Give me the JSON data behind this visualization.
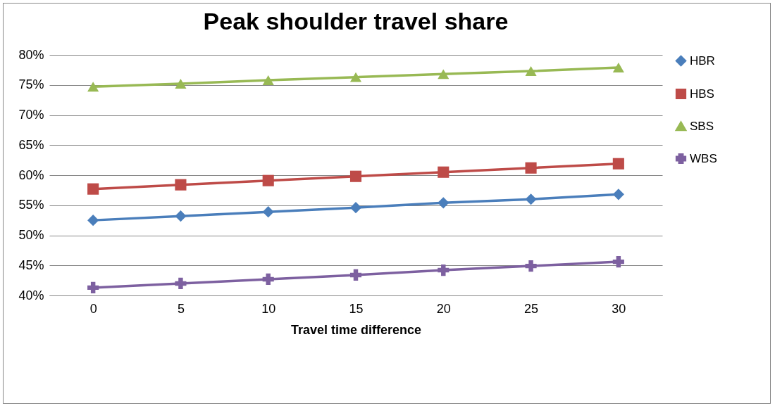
{
  "chart_data": {
    "type": "line",
    "title": "Peak shoulder travel share",
    "xlabel": "Travel time difference",
    "categories": [
      "0",
      "5",
      "10",
      "15",
      "20",
      "25",
      "30"
    ],
    "series": [
      {
        "name": "HBR",
        "color": "#4a7ebb",
        "marker": "diamond",
        "values": [
          52.5,
          53.2,
          53.9,
          54.6,
          55.4,
          56.0,
          56.8
        ]
      },
      {
        "name": "HBS",
        "color": "#be4b48",
        "marker": "square",
        "values": [
          57.7,
          58.4,
          59.1,
          59.8,
          60.5,
          61.2,
          61.9
        ]
      },
      {
        "name": "SBS",
        "color": "#98b954",
        "marker": "triangle",
        "values": [
          74.7,
          75.2,
          75.8,
          76.3,
          76.8,
          77.3,
          77.9
        ]
      },
      {
        "name": "WBS",
        "color": "#7d60a0",
        "marker": "cross",
        "values": [
          41.3,
          42.0,
          42.7,
          43.4,
          44.2,
          44.9,
          45.6
        ]
      }
    ],
    "ylim": [
      40,
      80
    ],
    "yticks": [
      {
        "value": 40,
        "label": "40%"
      },
      {
        "value": 45,
        "label": "45%"
      },
      {
        "value": 50,
        "label": "50%"
      },
      {
        "value": 55,
        "label": "55%"
      },
      {
        "value": 60,
        "label": "60%"
      },
      {
        "value": 65,
        "label": "65%"
      },
      {
        "value": 70,
        "label": "70%"
      },
      {
        "value": 75,
        "label": "75%"
      },
      {
        "value": 80,
        "label": "80%"
      }
    ],
    "grid": "y",
    "legend": "right",
    "line_style": "solid"
  }
}
